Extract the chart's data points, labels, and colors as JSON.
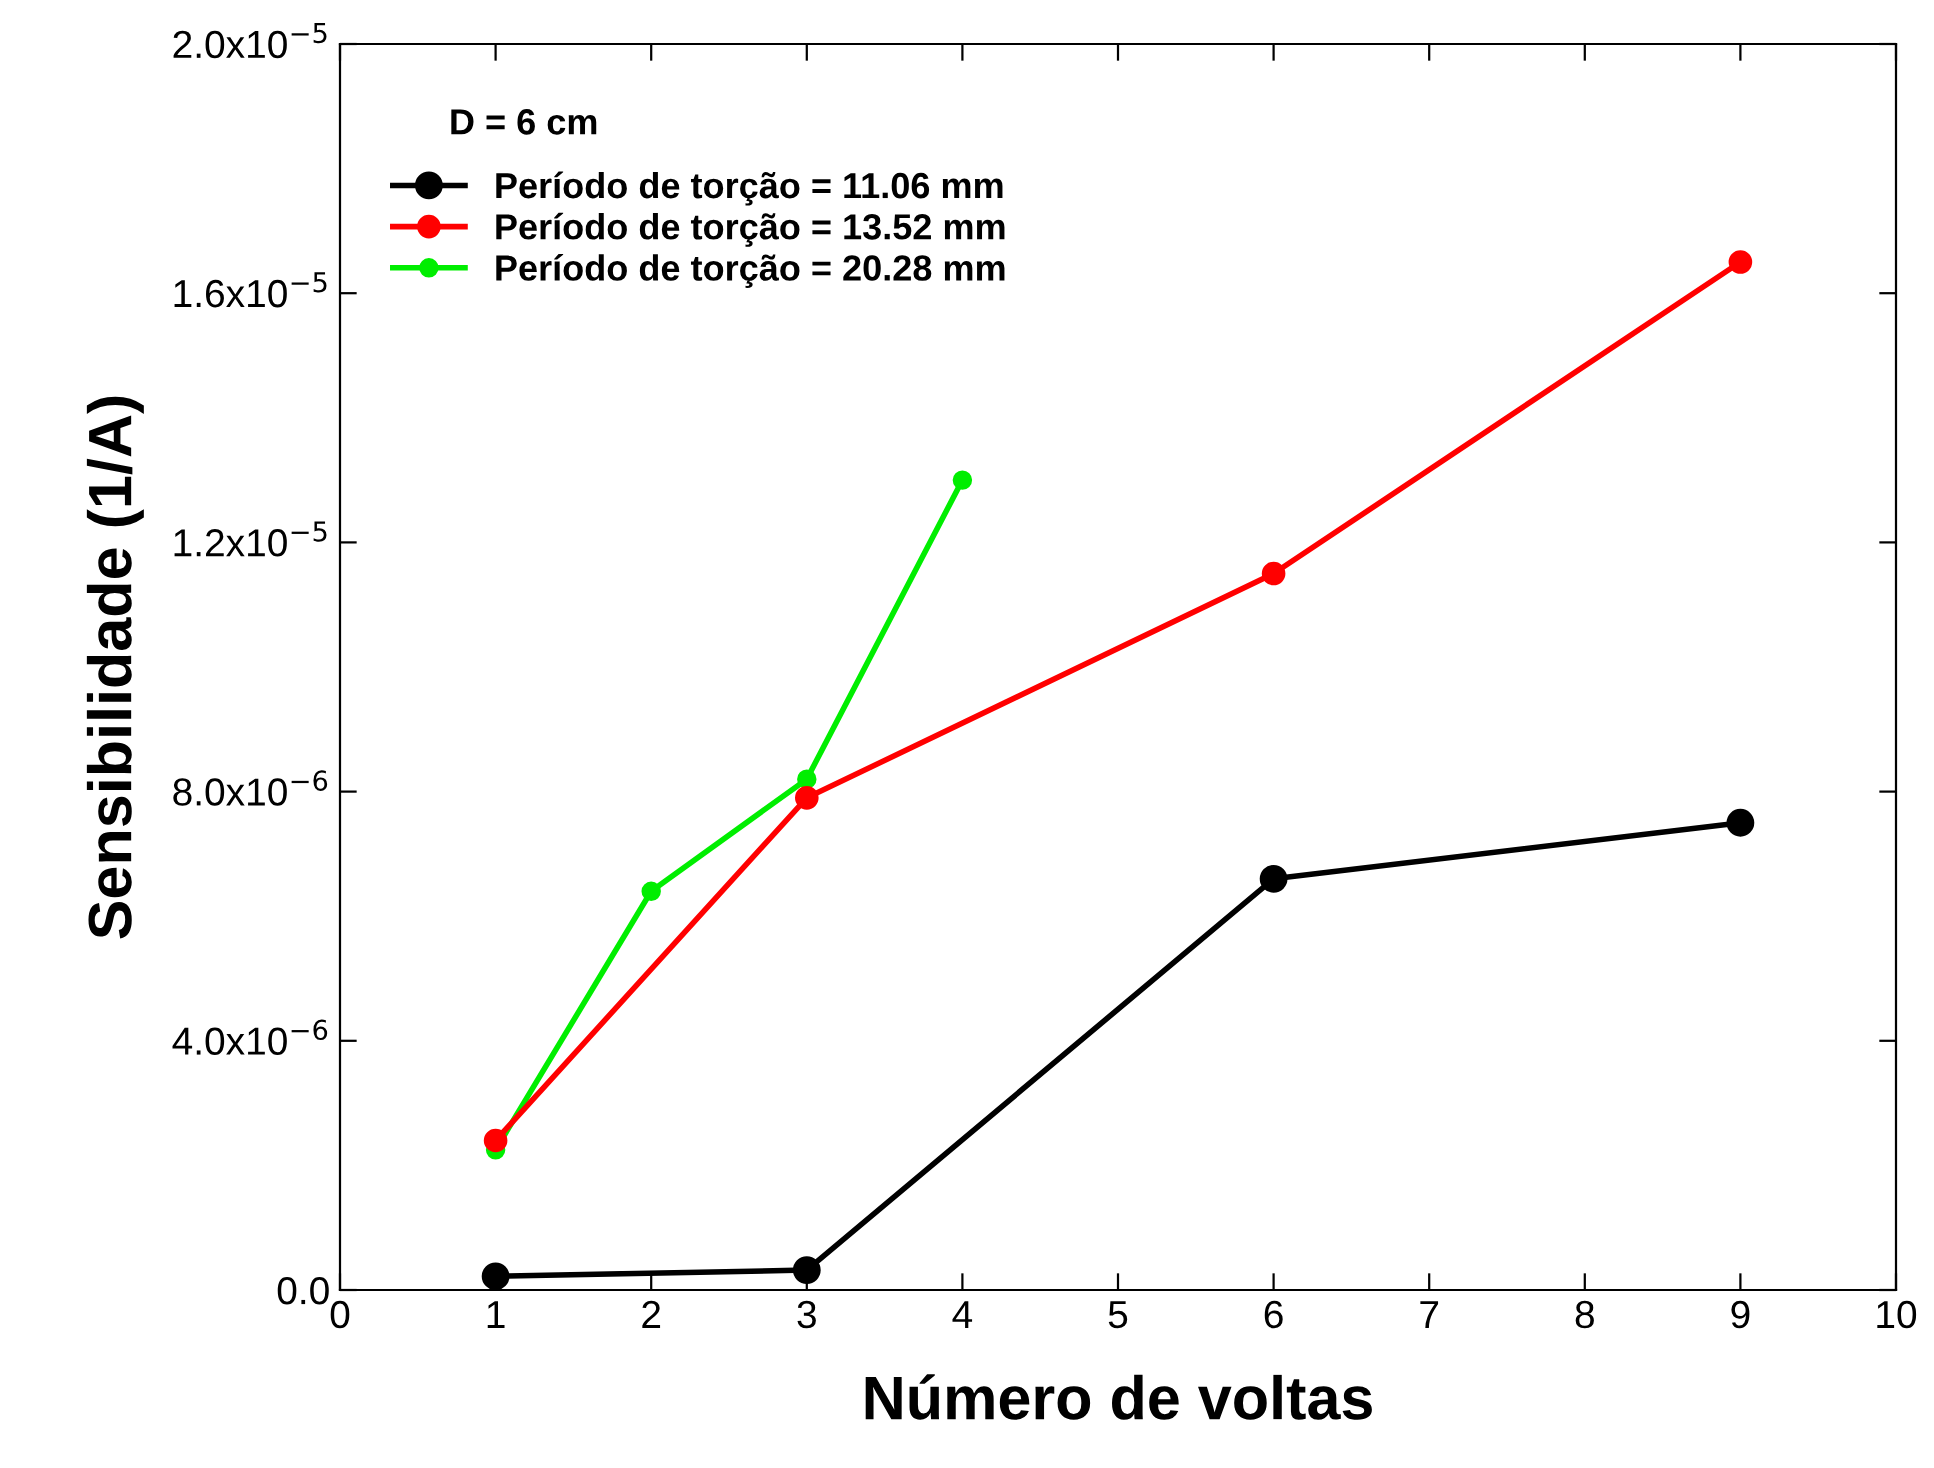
{
  "chart_data": {
    "type": "line",
    "xlabel": "Número de voltas",
    "ylabel": "Sensibilidade (1/A)",
    "annotations": [
      "D = 6 cm"
    ],
    "xlim": [
      0,
      10
    ],
    "xticks": [
      0,
      1,
      2,
      3,
      4,
      5,
      6,
      7,
      8,
      9,
      10
    ],
    "ylim": [
      0,
      2e-05
    ],
    "yticks": [
      {
        "value": 0,
        "label": "0.0"
      },
      {
        "value": 4e-06,
        "label": "4.0x10$^{−6}$"
      },
      {
        "value": 8e-06,
        "label": "8.0x10$^{−6}$"
      },
      {
        "value": 1.2e-05,
        "label": "1.2x10$^{−5}$"
      },
      {
        "value": 1.6e-05,
        "label": "1.6x10$^{−5}$"
      },
      {
        "value": 2e-05,
        "label": "2.0x10$^{−5}$"
      }
    ],
    "grid": false,
    "legend": "top left",
    "marker": "circle",
    "line_style": "solid",
    "series": [
      {
        "name": "Período de torção = 11.06 mm",
        "color": "#000000",
        "x": [
          1,
          3,
          6,
          9
        ],
        "values": [
          2.2e-07,
          3.2e-07,
          6.6e-06,
          7.5e-06
        ]
      },
      {
        "name": "Período de torção = 13.52 mm",
        "color": "#ff0000",
        "x": [
          1,
          3,
          6,
          9
        ],
        "values": [
          2.4e-06,
          7.9e-06,
          1.15e-05,
          1.65e-05
        ]
      },
      {
        "name": "Período de torção = 20.28 mm",
        "color": "#00ee00",
        "x": [
          1,
          2,
          3,
          4
        ],
        "values": [
          2.25e-06,
          6.4e-06,
          8.2e-06,
          1.3e-05
        ]
      }
    ]
  }
}
